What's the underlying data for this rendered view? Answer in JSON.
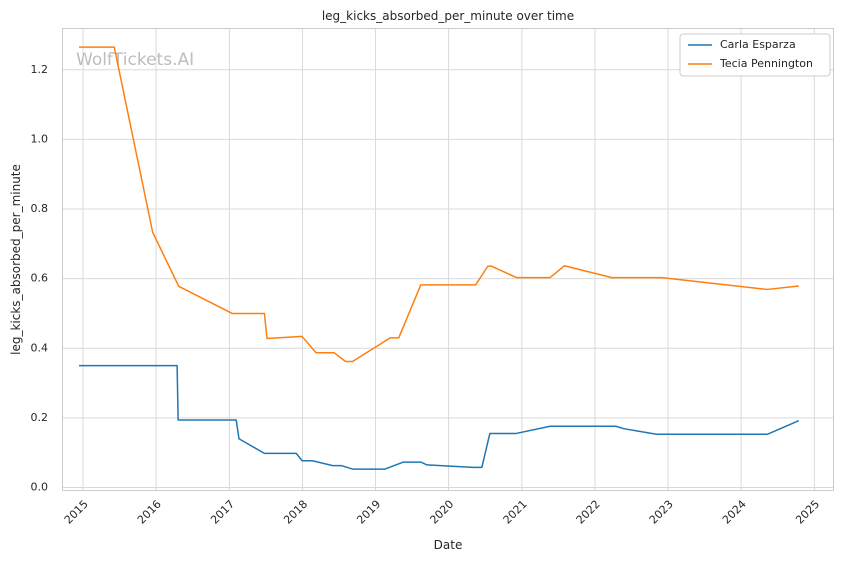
{
  "chart_data": {
    "type": "line",
    "title": "leg_kicks_absorbed_per_minute over time",
    "xlabel": "Date",
    "ylabel": "leg_kicks_absorbed_per_minute",
    "watermark": "WolfTickets.AI",
    "xlim": [
      "2014-09-18",
      "2025-04-09"
    ],
    "ylim": [
      -0.01,
      1.32
    ],
    "x_ticks": [
      "2015",
      "2016",
      "2017",
      "2018",
      "2019",
      "2020",
      "2021",
      "2022",
      "2023",
      "2024",
      "2025"
    ],
    "y_ticks": [
      "0.0",
      "0.2",
      "0.4",
      "0.6",
      "0.8",
      "1.0",
      "1.2"
    ],
    "grid": true,
    "legend_position": "top-right",
    "series": [
      {
        "name": "Carla Esparza",
        "color": "#1f77b4",
        "points": [
          [
            "2014-12-12",
            0.35
          ],
          [
            "2016-04-15",
            0.35
          ],
          [
            "2016-04-20",
            0.194
          ],
          [
            "2017-02-04",
            0.194
          ],
          [
            "2017-02-18",
            0.14
          ],
          [
            "2017-06-25",
            0.098
          ],
          [
            "2017-12-01",
            0.098
          ],
          [
            "2017-12-30",
            0.077
          ],
          [
            "2018-02-20",
            0.077
          ],
          [
            "2018-06-01",
            0.063
          ],
          [
            "2018-07-14",
            0.063
          ],
          [
            "2018-09-08",
            0.053
          ],
          [
            "2019-02-17",
            0.053
          ],
          [
            "2019-05-20",
            0.073
          ],
          [
            "2019-08-15",
            0.073
          ],
          [
            "2019-09-15",
            0.065
          ],
          [
            "2020-05-01",
            0.058
          ],
          [
            "2020-06-15",
            0.058
          ],
          [
            "2020-07-25",
            0.155
          ],
          [
            "2020-12-01",
            0.155
          ],
          [
            "2021-05-22",
            0.176
          ],
          [
            "2022-04-16",
            0.176
          ],
          [
            "2022-05-25",
            0.169
          ],
          [
            "2022-11-05",
            0.153
          ],
          [
            "2024-05-11",
            0.153
          ],
          [
            "2024-10-15",
            0.192
          ]
        ]
      },
      {
        "name": "Tecia Pennington",
        "color": "#ff7f0e",
        "points": [
          [
            "2014-12-12",
            1.265
          ],
          [
            "2015-06-06",
            1.265
          ],
          [
            "2015-12-15",
            0.733
          ],
          [
            "2016-04-23",
            0.578
          ],
          [
            "2017-01-15",
            0.5
          ],
          [
            "2017-06-25",
            0.5
          ],
          [
            "2017-07-08",
            0.428
          ],
          [
            "2017-12-30",
            0.434
          ],
          [
            "2018-03-10",
            0.387
          ],
          [
            "2018-06-09",
            0.387
          ],
          [
            "2018-08-04",
            0.362
          ],
          [
            "2018-09-08",
            0.362
          ],
          [
            "2019-03-15",
            0.43
          ],
          [
            "2019-04-27",
            0.43
          ],
          [
            "2019-08-15",
            0.582
          ],
          [
            "2020-05-15",
            0.582
          ],
          [
            "2020-07-15",
            0.636
          ],
          [
            "2020-08-01",
            0.636
          ],
          [
            "2020-12-05",
            0.603
          ],
          [
            "2021-05-22",
            0.603
          ],
          [
            "2021-08-01",
            0.637
          ],
          [
            "2022-03-26",
            0.603
          ],
          [
            "2022-12-01",
            0.603
          ],
          [
            "2024-05-11",
            0.569
          ],
          [
            "2024-10-15",
            0.579
          ]
        ]
      }
    ]
  }
}
